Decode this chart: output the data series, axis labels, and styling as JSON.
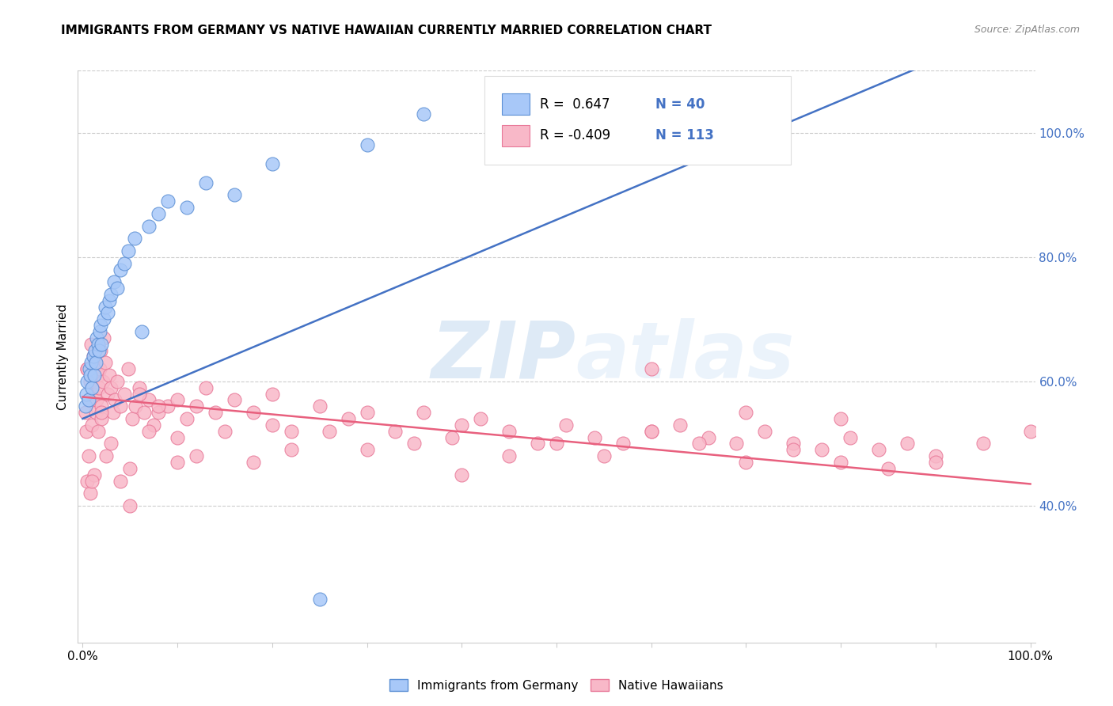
{
  "title": "IMMIGRANTS FROM GERMANY VS NATIVE HAWAIIAN CURRENTLY MARRIED CORRELATION CHART",
  "source": "Source: ZipAtlas.com",
  "ylabel": "Currently Married",
  "r_blue": 0.647,
  "n_blue": 40,
  "r_pink": -0.409,
  "n_pink": 113,
  "legend_label_blue": "Immigrants from Germany",
  "legend_label_pink": "Native Hawaiians",
  "xlim": [
    -0.005,
    1.005
  ],
  "ylim": [
    0.18,
    1.1
  ],
  "right_ytick_values": [
    0.4,
    0.6,
    0.8,
    1.0
  ],
  "right_yticklabels": [
    "40.0%",
    "60.0%",
    "80.0%",
    "100.0%"
  ],
  "color_blue_fill": "#a8c8f8",
  "color_blue_edge": "#5b8fd4",
  "color_blue_line": "#4472c4",
  "color_pink_fill": "#f8b8c8",
  "color_pink_edge": "#e87898",
  "color_pink_line": "#e8607e",
  "color_axis_right": "#4472c4",
  "color_grid": "#cccccc",
  "watermark_zip": "ZIP",
  "watermark_atlas": "atlas",
  "blue_x": [
    0.003,
    0.004,
    0.005,
    0.006,
    0.007,
    0.008,
    0.009,
    0.01,
    0.011,
    0.012,
    0.013,
    0.014,
    0.015,
    0.016,
    0.017,
    0.018,
    0.019,
    0.02,
    0.022,
    0.024,
    0.026,
    0.028,
    0.03,
    0.033,
    0.036,
    0.04,
    0.044,
    0.048,
    0.055,
    0.062,
    0.07,
    0.08,
    0.09,
    0.11,
    0.13,
    0.16,
    0.2,
    0.25,
    0.3,
    0.36
  ],
  "blue_y": [
    0.56,
    0.58,
    0.6,
    0.57,
    0.62,
    0.61,
    0.63,
    0.59,
    0.64,
    0.61,
    0.65,
    0.63,
    0.67,
    0.66,
    0.65,
    0.68,
    0.69,
    0.66,
    0.7,
    0.72,
    0.71,
    0.73,
    0.74,
    0.76,
    0.75,
    0.78,
    0.79,
    0.81,
    0.83,
    0.68,
    0.85,
    0.87,
    0.89,
    0.88,
    0.92,
    0.9,
    0.95,
    0.25,
    0.98,
    1.03
  ],
  "pink_x": [
    0.003,
    0.004,
    0.005,
    0.006,
    0.007,
    0.008,
    0.009,
    0.01,
    0.011,
    0.012,
    0.013,
    0.014,
    0.015,
    0.016,
    0.017,
    0.018,
    0.019,
    0.02,
    0.021,
    0.022,
    0.024,
    0.026,
    0.028,
    0.03,
    0.032,
    0.034,
    0.036,
    0.04,
    0.044,
    0.048,
    0.052,
    0.056,
    0.06,
    0.065,
    0.07,
    0.075,
    0.08,
    0.09,
    0.1,
    0.11,
    0.12,
    0.13,
    0.14,
    0.16,
    0.18,
    0.2,
    0.22,
    0.25,
    0.28,
    0.3,
    0.33,
    0.36,
    0.39,
    0.42,
    0.45,
    0.48,
    0.51,
    0.54,
    0.57,
    0.6,
    0.63,
    0.66,
    0.69,
    0.72,
    0.75,
    0.78,
    0.81,
    0.84,
    0.87,
    0.9,
    0.005,
    0.008,
    0.012,
    0.016,
    0.02,
    0.025,
    0.03,
    0.04,
    0.05,
    0.06,
    0.07,
    0.08,
    0.1,
    0.12,
    0.15,
    0.18,
    0.22,
    0.26,
    0.3,
    0.35,
    0.4,
    0.45,
    0.5,
    0.55,
    0.6,
    0.65,
    0.7,
    0.75,
    0.8,
    0.85,
    0.005,
    0.01,
    0.02,
    0.05,
    0.1,
    0.2,
    0.4,
    0.6,
    0.7,
    0.8,
    0.9,
    0.95,
    1.0
  ],
  "pink_y": [
    0.55,
    0.52,
    0.62,
    0.48,
    0.57,
    0.6,
    0.66,
    0.53,
    0.64,
    0.58,
    0.63,
    0.55,
    0.57,
    0.61,
    0.59,
    0.62,
    0.65,
    0.54,
    0.6,
    0.67,
    0.63,
    0.58,
    0.61,
    0.59,
    0.55,
    0.57,
    0.6,
    0.56,
    0.58,
    0.62,
    0.54,
    0.56,
    0.59,
    0.55,
    0.57,
    0.53,
    0.55,
    0.56,
    0.57,
    0.54,
    0.56,
    0.59,
    0.55,
    0.57,
    0.55,
    0.58,
    0.52,
    0.56,
    0.54,
    0.55,
    0.52,
    0.55,
    0.51,
    0.54,
    0.52,
    0.5,
    0.53,
    0.51,
    0.5,
    0.52,
    0.53,
    0.51,
    0.5,
    0.52,
    0.5,
    0.49,
    0.51,
    0.49,
    0.5,
    0.48,
    0.44,
    0.42,
    0.45,
    0.52,
    0.56,
    0.48,
    0.5,
    0.44,
    0.46,
    0.58,
    0.52,
    0.56,
    0.51,
    0.48,
    0.52,
    0.47,
    0.49,
    0.52,
    0.49,
    0.5,
    0.45,
    0.48,
    0.5,
    0.48,
    0.52,
    0.5,
    0.47,
    0.49,
    0.47,
    0.46,
    0.62,
    0.44,
    0.55,
    0.4,
    0.47,
    0.53,
    0.53,
    0.62,
    0.55,
    0.54,
    0.47,
    0.5,
    0.52
  ]
}
